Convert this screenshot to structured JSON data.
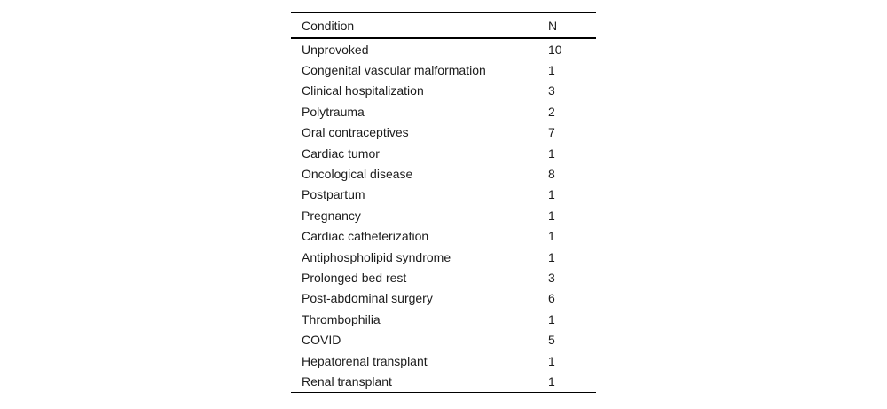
{
  "table": {
    "header": {
      "condition": "Condition",
      "n": "N"
    },
    "rows": [
      {
        "condition": "Unprovoked",
        "n": "10"
      },
      {
        "condition": "Congenital vascular malformation",
        "n": "1"
      },
      {
        "condition": "Clinical hospitalization",
        "n": "3"
      },
      {
        "condition": "Polytrauma",
        "n": "2"
      },
      {
        "condition": "Oral contraceptives",
        "n": "7"
      },
      {
        "condition": "Cardiac tumor",
        "n": "1"
      },
      {
        "condition": "Oncological disease",
        "n": "8"
      },
      {
        "condition": "Postpartum",
        "n": "1"
      },
      {
        "condition": "Pregnancy",
        "n": "1"
      },
      {
        "condition": "Cardiac catheterization",
        "n": "1"
      },
      {
        "condition": "Antiphospholipid syndrome",
        "n": "1"
      },
      {
        "condition": "Prolonged bed rest",
        "n": "3"
      },
      {
        "condition": "Post-abdominal surgery",
        "n": "6"
      },
      {
        "condition": "Thrombophilia",
        "n": "1"
      },
      {
        "condition": "COVID",
        "n": "5"
      },
      {
        "condition": "Hepatorenal transplant",
        "n": "1"
      },
      {
        "condition": "Renal transplant",
        "n": "1"
      }
    ]
  },
  "colors": {
    "background": "#ffffff",
    "text": "#1c1c1c",
    "rule": "#000000"
  }
}
